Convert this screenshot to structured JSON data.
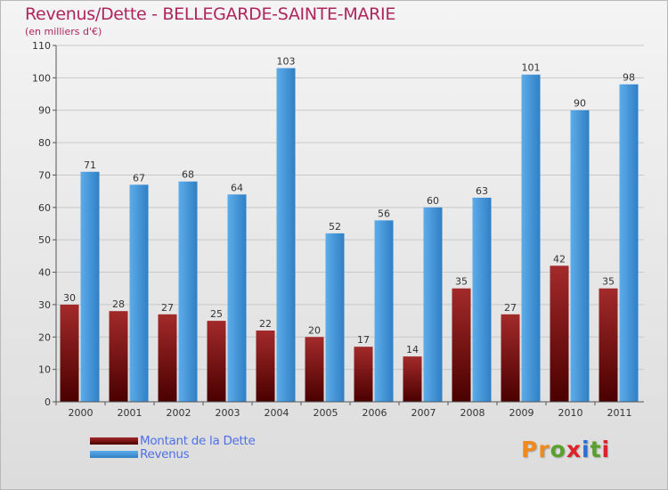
{
  "header": {
    "title": "Revenus/Dette - BELLEGARDE-SAINTE-MARIE",
    "subtitle": "(en milliers d'€)"
  },
  "legend": {
    "items": [
      {
        "label": "Montant de la Dette",
        "color": "#7a0c0c"
      },
      {
        "label": "Revenus",
        "color": "#3d95d9"
      }
    ]
  },
  "logo": {
    "text": "Proxiti",
    "letter_colors": [
      "#f08a1c",
      "#f08a1c",
      "#5aa02c",
      "#e0202a",
      "#2a6fd6",
      "#5aa02c",
      "#e0202a"
    ]
  },
  "colors": {
    "title": "#b0245c",
    "debt_top": "#a32a2a",
    "debt_bottom": "#4a0000",
    "rev_top": "#5dacea",
    "rev_bottom": "#2f7fc4",
    "grid": "#c8c8c8",
    "axis": "#555555"
  },
  "chart_data": {
    "type": "bar",
    "title": "Revenus/Dette - BELLEGARDE-SAINTE-MARIE",
    "subtitle": "(en milliers d'€)",
    "xlabel": "",
    "ylabel": "",
    "ylim": [
      0,
      110
    ],
    "yticks": [
      0,
      10,
      20,
      30,
      40,
      50,
      60,
      70,
      80,
      90,
      100,
      110
    ],
    "grid": true,
    "legend_position": "bottom-left",
    "categories": [
      "2000",
      "2001",
      "2002",
      "2003",
      "2004",
      "2005",
      "2006",
      "2007",
      "2008",
      "2009",
      "2010",
      "2011"
    ],
    "series": [
      {
        "name": "Montant de la Dette",
        "values": [
          30,
          28,
          27,
          25,
          22,
          20,
          17,
          14,
          35,
          27,
          42,
          35
        ]
      },
      {
        "name": "Revenus",
        "values": [
          71,
          67,
          68,
          64,
          103,
          52,
          56,
          60,
          63,
          101,
          90,
          98
        ]
      }
    ]
  }
}
